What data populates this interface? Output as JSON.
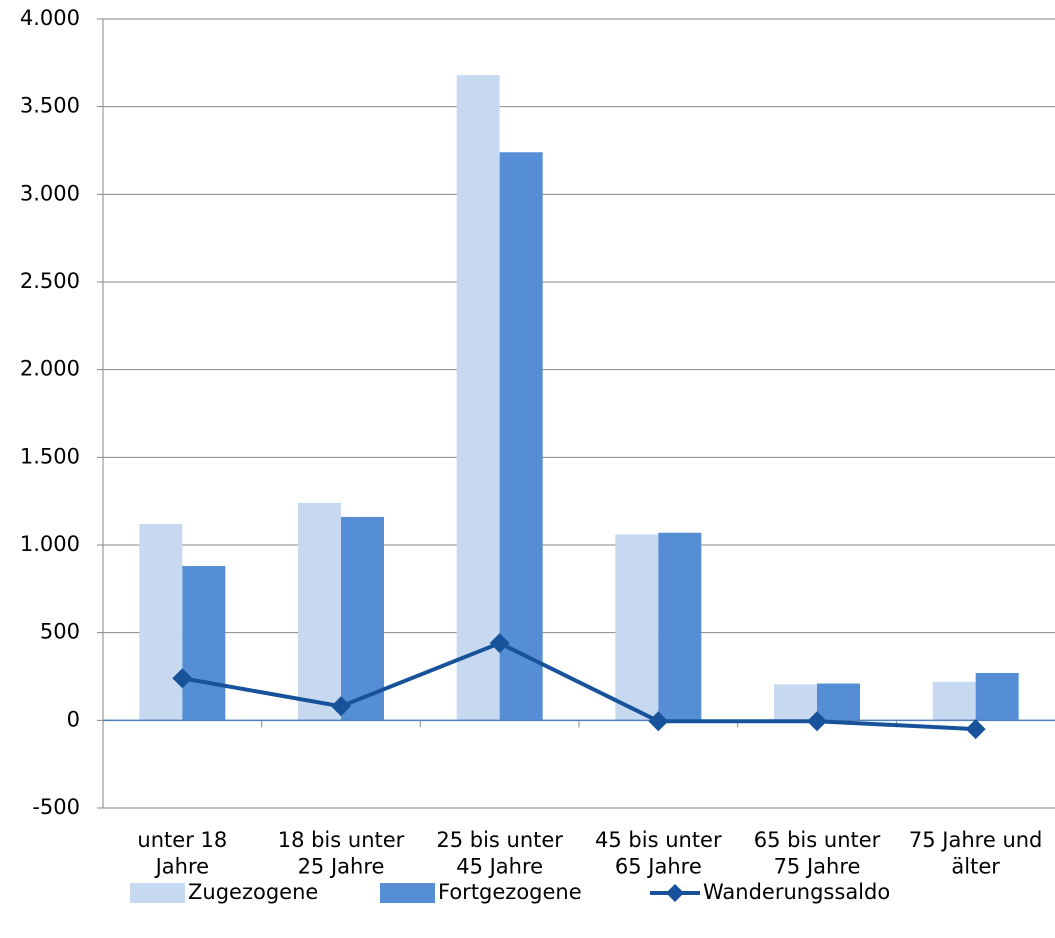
{
  "chart_data": {
    "type": "bar",
    "categories": [
      "unter 18\nJahre",
      "18 bis unter\n25 Jahre",
      "25 bis unter\n45 Jahre",
      "45 bis unter\n65 Jahre",
      "65 bis unter\n75 Jahre",
      "75 Jahre und\nälter"
    ],
    "series": [
      {
        "name": "Zugezogene",
        "color": "#c6d9f1",
        "type": "bar",
        "values": [
          1120,
          1240,
          3680,
          1060,
          205,
          220
        ]
      },
      {
        "name": "Fortgezogene",
        "color": "#558ed5",
        "type": "bar",
        "values": [
          880,
          1160,
          3240,
          1070,
          210,
          270
        ]
      },
      {
        "name": "Wanderungssaldo",
        "color": "#17529b",
        "type": "line",
        "values": [
          240,
          80,
          440,
          -5,
          -5,
          -50
        ]
      }
    ],
    "ylim": [
      -500,
      4000
    ],
    "yticks": [
      -500,
      0,
      500,
      {
        "value": 1000,
        "label": "1.000"
      },
      {
        "value": 1500,
        "label": "1.500"
      },
      {
        "value": 2000,
        "label": "2.000"
      },
      {
        "value": 2500,
        "label": "2.500"
      },
      {
        "value": 3000,
        "label": "3.000"
      },
      {
        "value": 3500,
        "label": "3.500"
      },
      {
        "value": 4000,
        "label": "4.000"
      }
    ],
    "grid": true,
    "legend": "bottom"
  }
}
